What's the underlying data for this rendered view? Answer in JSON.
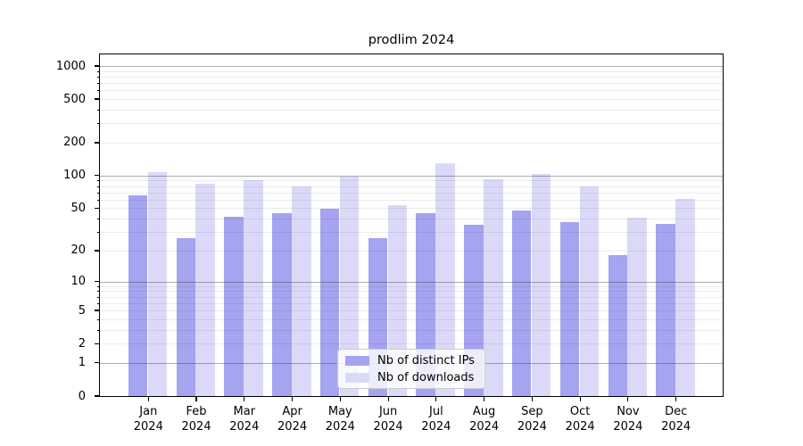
{
  "title": "prodlim 2024",
  "chart_data": {
    "type": "bar",
    "title": "prodlim 2024",
    "categories": [
      "Jan 2024",
      "Feb 2024",
      "Mar 2024",
      "Apr 2024",
      "May 2024",
      "Jun 2024",
      "Jul 2024",
      "Aug 2024",
      "Sep 2024",
      "Oct 2024",
      "Nov 2024",
      "Dec 2024"
    ],
    "series": [
      {
        "name": "Nb of distinct IPs",
        "color": "#a4a4f0",
        "values": [
          66,
          26,
          42,
          45,
          49,
          26,
          45,
          35,
          48,
          37,
          18,
          36
        ]
      },
      {
        "name": "Nb of downloads",
        "color": "#dadaf8",
        "values": [
          108,
          84,
          90,
          80,
          98,
          53,
          131,
          92,
          104,
          80,
          41,
          61
        ]
      }
    ],
    "yscale": "log1p",
    "yticks": [
      0,
      1,
      2,
      5,
      10,
      20,
      50,
      100,
      200,
      500,
      1000
    ],
    "major_grid_values": [
      1,
      10,
      100,
      1000
    ],
    "ylim": [
      0,
      1275
    ],
    "xlabel": "",
    "ylabel": "",
    "grid": "on",
    "legend_position": "lower center"
  }
}
